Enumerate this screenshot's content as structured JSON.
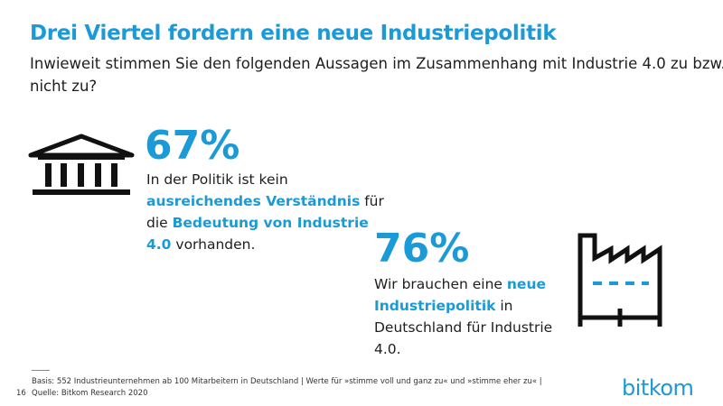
{
  "header": {
    "title": "Drei Viertel fordern eine neue Industriepolitik",
    "subtitle": "Inwieweit stimmen Sie den folgenden Aussagen im Zusammenhang mit Industrie 4.0 zu bzw. nicht zu?"
  },
  "stats": [
    {
      "value": "67%",
      "text": [
        {
          "t": "In der Politik ist kein ",
          "em": false
        },
        {
          "t": "ausreichendes Verständnis",
          "em": true
        },
        {
          "t": " für die ",
          "em": false
        },
        {
          "t": "Bedeutung von Industrie 4.0",
          "em": true
        },
        {
          "t": " vorhanden.",
          "em": false
        }
      ]
    },
    {
      "value": "76%",
      "text": [
        {
          "t": "Wir brauchen eine ",
          "em": false
        },
        {
          "t": "neue Industriepolitik",
          "em": true
        },
        {
          "t": " in Deutschland für Industrie 4.0.",
          "em": false
        }
      ]
    }
  ],
  "footer": {
    "basis": "Basis: 552 Industrieunternehmen ab 100 Mitarbeitern in Deutschland | Werte für »stimme voll und ganz zu« und »stimme eher zu« |",
    "source": "Quelle: Bitkom Research 2020",
    "page": "16",
    "logo": "bitkom"
  }
}
